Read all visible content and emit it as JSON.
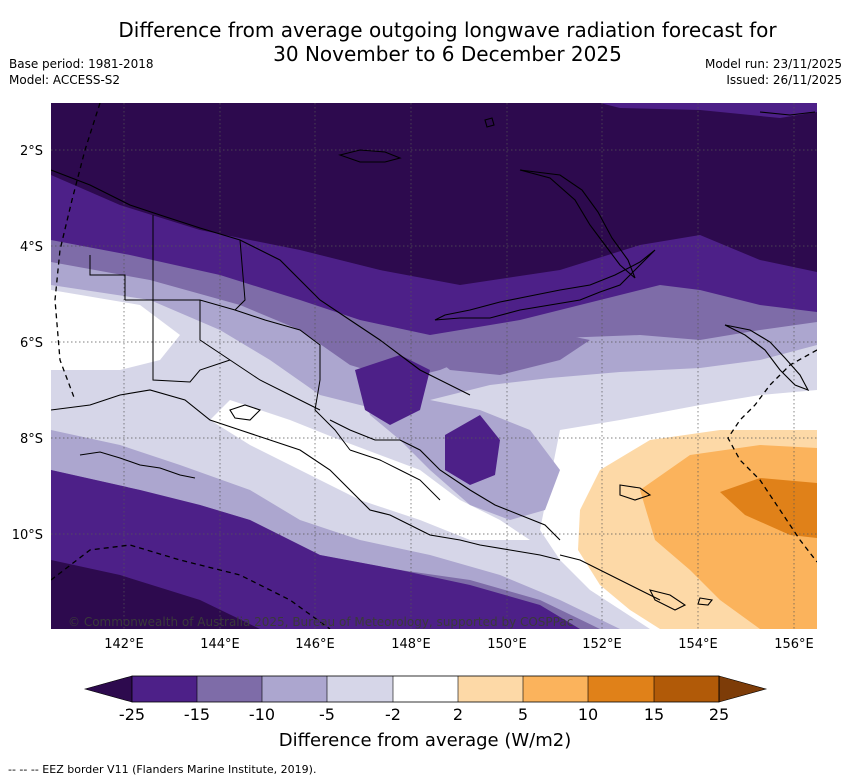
{
  "title_line1": "Difference from average outgoing longwave radiation forecast for",
  "title_line2": "30 November to 6 December 2025",
  "base_period": "Base period: 1981-2018",
  "model": "Model: ACCESS-S2",
  "model_run": "Model run: 23/11/2025",
  "issued": "Issued: 26/11/2025",
  "copyright": "© Commonwealth of Australia 2025, Bureau of Meteorology, supported by COSPPac",
  "map_data": {
    "lon_labels": [
      "142°E",
      "144°E",
      "146°E",
      "148°E",
      "150°E",
      "152°E",
      "154°E",
      "156°E"
    ],
    "lat_labels": [
      "2°S",
      "4°S",
      "6°S",
      "8°S",
      "10°S"
    ]
  },
  "colorbar": {
    "labels": [
      "-25",
      "-15",
      "-10",
      "-5",
      "-2",
      "2",
      "5",
      "10",
      "15",
      "25"
    ],
    "colors": {
      "lt_m25": "#2d0a4e",
      "m25_m15": "#4d2088",
      "m15_m10": "#7e6ca8",
      "m10_m5": "#aca6cf",
      "m5_m2": "#d6d6e8",
      "m2_2": "#ffffff",
      "p2_5": "#fdd9a7",
      "p5_10": "#fbb35c",
      "p10_15": "#e08119",
      "p15_25": "#b15a08",
      "gt25": "#7d3c08"
    },
    "title": "Difference from average (W/m2)"
  },
  "footnote": "-- -- -- EEZ border V11 (Flanders Marine Institute, 2019)."
}
